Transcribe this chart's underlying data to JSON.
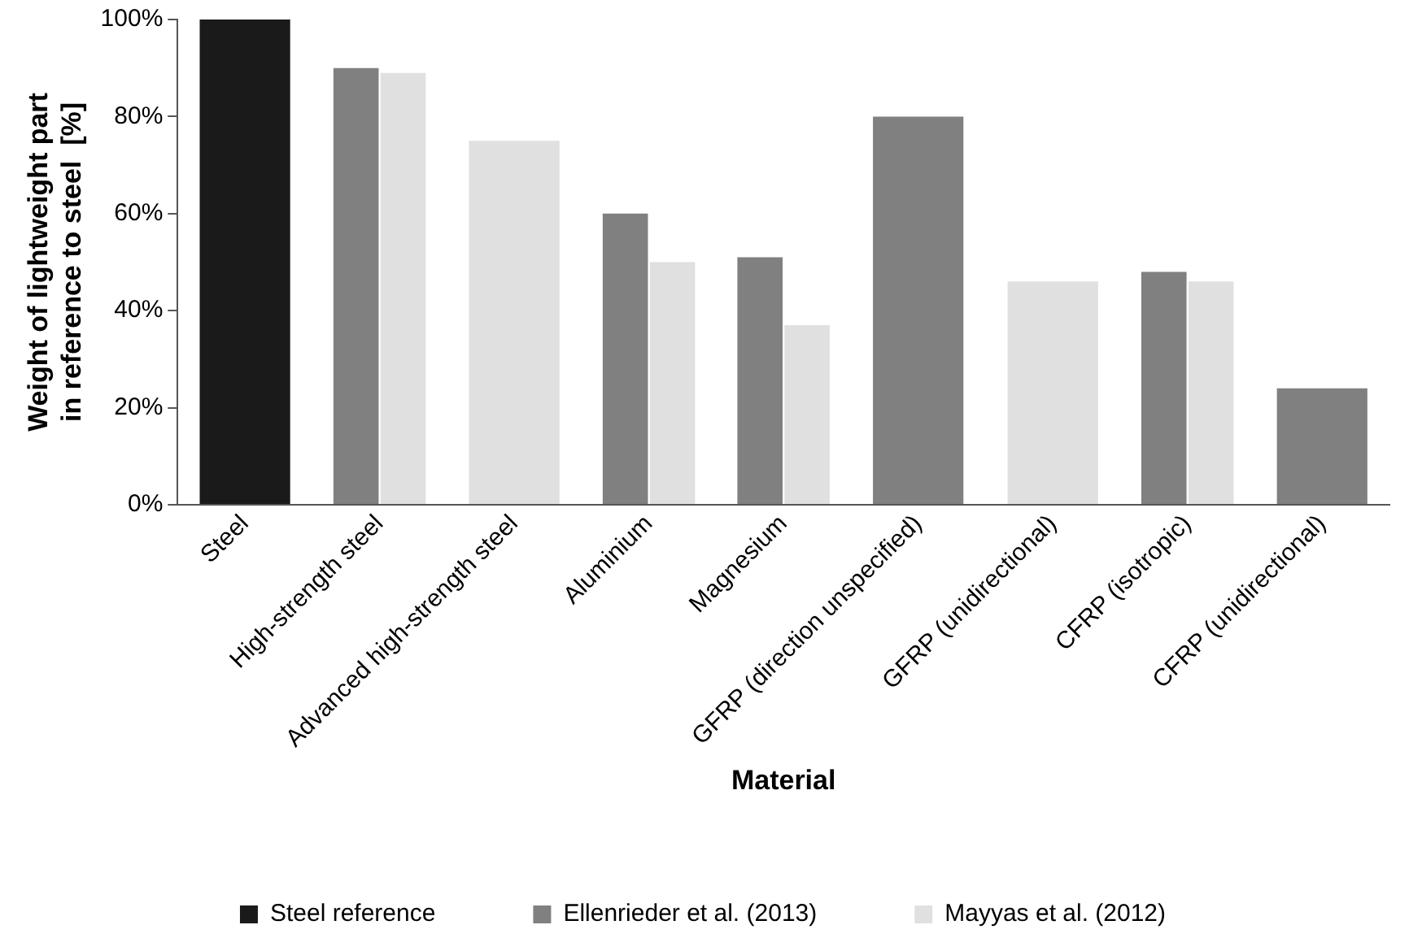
{
  "chart_data": {
    "type": "bar",
    "xlabel": "Material",
    "ylabel": "Weight of lightweight part\nin reference to steel  [%]",
    "categories": [
      "Steel",
      "High-strength steel",
      "Advanced high-strength steel",
      "Aluminium",
      "Magnesium",
      "GFRP (direction unspecified)",
      "GFRP (unidirectional)",
      "CFRP (isotropic)",
      "CFRP (unidirectional)"
    ],
    "series": [
      {
        "name": "Steel reference",
        "color": "#1a1a1a",
        "values": [
          100,
          null,
          null,
          null,
          null,
          null,
          null,
          null,
          null
        ]
      },
      {
        "name": "Ellenrieder et al. (2013)",
        "color": "#808080",
        "values": [
          null,
          90,
          null,
          60,
          51,
          80,
          null,
          48,
          24
        ]
      },
      {
        "name": "Mayyas et al. (2012)",
        "color": "#e0e0e0",
        "values": [
          null,
          89,
          75,
          50,
          37,
          null,
          46,
          46,
          null
        ]
      }
    ],
    "ylim": [
      0,
      100
    ],
    "yticks": [
      {
        "value": 0,
        "label": "0%"
      },
      {
        "value": 20,
        "label": "20%"
      },
      {
        "value": 40,
        "label": "40%"
      },
      {
        "value": 60,
        "label": "60%"
      },
      {
        "value": 80,
        "label": "80%"
      },
      {
        "value": 100,
        "label": "100%"
      }
    ],
    "grid": false,
    "legend": "bottom"
  }
}
